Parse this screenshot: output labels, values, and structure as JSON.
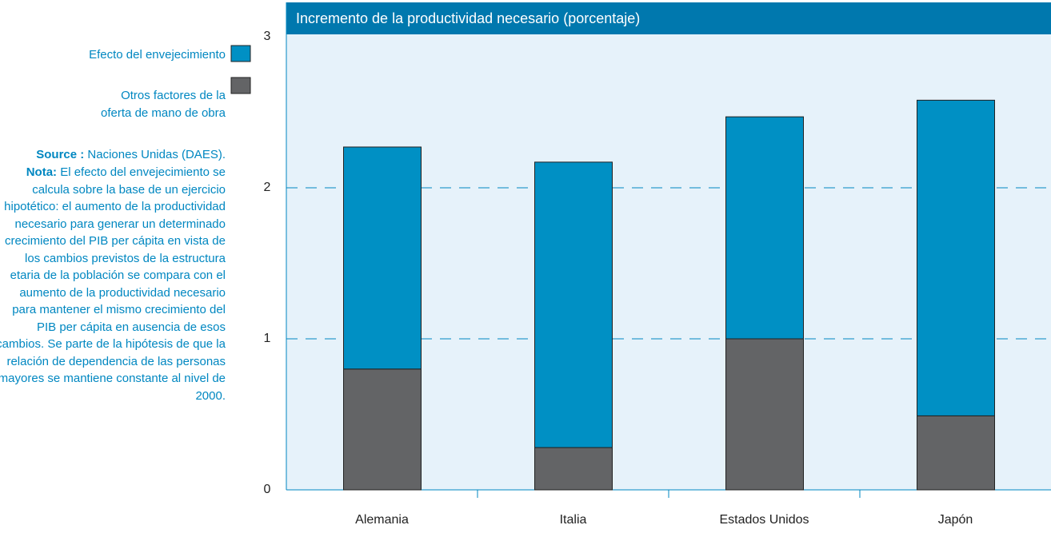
{
  "chart_data": {
    "type": "stacked_bar",
    "title": "Incremento de la productividad necesario (porcentaje)",
    "categories": [
      "Alemania",
      "Italia",
      "Estados Unidos",
      "Japón"
    ],
    "series": [
      {
        "name": "Otros factores de la oferta de mano de obra",
        "color": "#636466",
        "values": [
          0.8,
          0.28,
          1.0,
          0.49
        ]
      },
      {
        "name": "Efecto del envejecimiento",
        "color": "#0090c4",
        "values": [
          1.47,
          1.89,
          1.47,
          2.09
        ]
      }
    ],
    "ylim": [
      0,
      3
    ],
    "yticks": [
      0,
      1,
      2,
      3
    ],
    "grid": true,
    "source_label": "Source :",
    "source": "Naciones Unidas (DAES).",
    "note_label": "Nota:",
    "note": "El efecto del envejecimiento se calcula sobre la base de un ejercicio hipotético: el aumento de la productividad necesario para generar un determinado crecimiento del PIB per cápita en vista de los cambios previstos de la estructura etaria de la población se compara con el aumento de la productividad necesario para mantener el mismo crecimiento del PIB per cápita en ausencia de esos cambios. Se parte de la hipótesis de que la relación de dependencia de las personas mayores se mantiene constante al nivel de 2000."
  }
}
